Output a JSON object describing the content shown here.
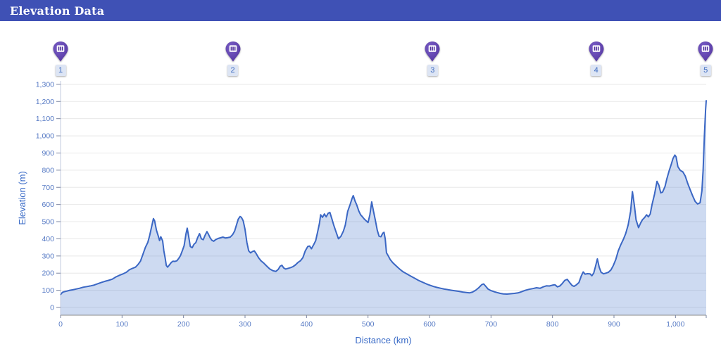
{
  "header": {
    "title": "Elevation Data",
    "bg_color": "#3f51b5"
  },
  "markers": {
    "pin_color_dark": "#53349f",
    "pin_color_light": "#7a5fc7",
    "icon": "mountain-columns-icon",
    "items": [
      {
        "label": "1",
        "km": 0
      },
      {
        "label": "2",
        "km": 280
      },
      {
        "label": "3",
        "km": 605
      },
      {
        "label": "4",
        "km": 871
      },
      {
        "label": "5",
        "km": 1049
      }
    ]
  },
  "chart_data": {
    "type": "area",
    "title": "",
    "xlabel": "Distance (km)",
    "ylabel": "Elevation (m)",
    "xlim": [
      0,
      1050
    ],
    "ylim": [
      -45,
      1320
    ],
    "x_ticks": [
      0,
      100,
      200,
      300,
      400,
      500,
      600,
      700,
      800,
      900,
      1000
    ],
    "y_ticks": [
      0,
      100,
      200,
      300,
      400,
      500,
      600,
      700,
      800,
      900,
      1000,
      1100,
      1200,
      1300
    ],
    "grid": "horizontal",
    "legend": "none",
    "line_color": "#3b67c4",
    "fill_color": "rgba(98,141,212,0.32)",
    "grid_color": "#e8e8e8",
    "tick_label_color": "#5579c4",
    "axis_title_color": "#3a6bc7",
    "points": [
      [
        0,
        75
      ],
      [
        3,
        88
      ],
      [
        6,
        92
      ],
      [
        10,
        95
      ],
      [
        15,
        100
      ],
      [
        20,
        103
      ],
      [
        26,
        108
      ],
      [
        31,
        112
      ],
      [
        37,
        118
      ],
      [
        43,
        122
      ],
      [
        49,
        126
      ],
      [
        54,
        130
      ],
      [
        60,
        138
      ],
      [
        66,
        145
      ],
      [
        72,
        152
      ],
      [
        78,
        158
      ],
      [
        84,
        165
      ],
      [
        90,
        178
      ],
      [
        96,
        188
      ],
      [
        101,
        195
      ],
      [
        107,
        205
      ],
      [
        112,
        220
      ],
      [
        117,
        228
      ],
      [
        122,
        235
      ],
      [
        126,
        250
      ],
      [
        130,
        270
      ],
      [
        134,
        310
      ],
      [
        138,
        350
      ],
      [
        142,
        380
      ],
      [
        145,
        420
      ],
      [
        148,
        470
      ],
      [
        151,
        518
      ],
      [
        153,
        505
      ],
      [
        156,
        450
      ],
      [
        159,
        415
      ],
      [
        161,
        390
      ],
      [
        163,
        412
      ],
      [
        166,
        388
      ],
      [
        168,
        330
      ],
      [
        170,
        290
      ],
      [
        172,
        245
      ],
      [
        174,
        235
      ],
      [
        177,
        248
      ],
      [
        180,
        262
      ],
      [
        183,
        270
      ],
      [
        186,
        268
      ],
      [
        189,
        272
      ],
      [
        192,
        285
      ],
      [
        195,
        302
      ],
      [
        198,
        330
      ],
      [
        201,
        360
      ],
      [
        204,
        430
      ],
      [
        206,
        462
      ],
      [
        208,
        420
      ],
      [
        211,
        355
      ],
      [
        214,
        348
      ],
      [
        217,
        368
      ],
      [
        220,
        378
      ],
      [
        223,
        408
      ],
      [
        226,
        430
      ],
      [
        229,
        400
      ],
      [
        232,
        395
      ],
      [
        235,
        420
      ],
      [
        238,
        442
      ],
      [
        240,
        430
      ],
      [
        243,
        408
      ],
      [
        246,
        392
      ],
      [
        249,
        386
      ],
      [
        252,
        395
      ],
      [
        256,
        402
      ],
      [
        260,
        406
      ],
      [
        264,
        410
      ],
      [
        268,
        405
      ],
      [
        272,
        407
      ],
      [
        276,
        410
      ],
      [
        280,
        425
      ],
      [
        283,
        445
      ],
      [
        286,
        480
      ],
      [
        289,
        515
      ],
      [
        292,
        530
      ],
      [
        294,
        525
      ],
      [
        297,
        505
      ],
      [
        300,
        455
      ],
      [
        303,
        380
      ],
      [
        306,
        330
      ],
      [
        309,
        318
      ],
      [
        312,
        326
      ],
      [
        315,
        330
      ],
      [
        318,
        315
      ],
      [
        322,
        290
      ],
      [
        326,
        272
      ],
      [
        330,
        260
      ],
      [
        335,
        242
      ],
      [
        340,
        225
      ],
      [
        345,
        215
      ],
      [
        350,
        210
      ],
      [
        354,
        222
      ],
      [
        357,
        240
      ],
      [
        360,
        246
      ],
      [
        363,
        230
      ],
      [
        366,
        224
      ],
      [
        370,
        228
      ],
      [
        374,
        232
      ],
      [
        378,
        238
      ],
      [
        382,
        248
      ],
      [
        386,
        262
      ],
      [
        390,
        272
      ],
      [
        394,
        290
      ],
      [
        398,
        330
      ],
      [
        402,
        355
      ],
      [
        405,
        358
      ],
      [
        408,
        342
      ],
      [
        412,
        368
      ],
      [
        415,
        390
      ],
      [
        418,
        440
      ],
      [
        421,
        490
      ],
      [
        423,
        540
      ],
      [
        426,
        525
      ],
      [
        429,
        545
      ],
      [
        432,
        528
      ],
      [
        435,
        548
      ],
      [
        438,
        554
      ],
      [
        441,
        520
      ],
      [
        444,
        482
      ],
      [
        448,
        440
      ],
      [
        452,
        400
      ],
      [
        456,
        415
      ],
      [
        460,
        445
      ],
      [
        463,
        480
      ],
      [
        467,
        560
      ],
      [
        471,
        600
      ],
      [
        474,
        635
      ],
      [
        476,
        652
      ],
      [
        479,
        620
      ],
      [
        482,
        595
      ],
      [
        485,
        562
      ],
      [
        488,
        540
      ],
      [
        491,
        528
      ],
      [
        494,
        515
      ],
      [
        497,
        505
      ],
      [
        500,
        495
      ],
      [
        503,
        540
      ],
      [
        506,
        615
      ],
      [
        509,
        560
      ],
      [
        512,
        508
      ],
      [
        515,
        450
      ],
      [
        518,
        415
      ],
      [
        521,
        412
      ],
      [
        524,
        432
      ],
      [
        526,
        438
      ],
      [
        528,
        400
      ],
      [
        530,
        318
      ],
      [
        533,
        300
      ],
      [
        536,
        280
      ],
      [
        540,
        262
      ],
      [
        544,
        248
      ],
      [
        548,
        235
      ],
      [
        552,
        222
      ],
      [
        557,
        208
      ],
      [
        562,
        198
      ],
      [
        567,
        188
      ],
      [
        572,
        178
      ],
      [
        577,
        168
      ],
      [
        582,
        158
      ],
      [
        587,
        150
      ],
      [
        592,
        142
      ],
      [
        597,
        134
      ],
      [
        602,
        128
      ],
      [
        607,
        122
      ],
      [
        612,
        117
      ],
      [
        618,
        112
      ],
      [
        624,
        107
      ],
      [
        630,
        104
      ],
      [
        636,
        100
      ],
      [
        642,
        97
      ],
      [
        648,
        94
      ],
      [
        654,
        90
      ],
      [
        660,
        87
      ],
      [
        665,
        85
      ],
      [
        670,
        90
      ],
      [
        675,
        100
      ],
      [
        680,
        115
      ],
      [
        685,
        133
      ],
      [
        688,
        137
      ],
      [
        691,
        125
      ],
      [
        695,
        108
      ],
      [
        700,
        98
      ],
      [
        705,
        92
      ],
      [
        710,
        87
      ],
      [
        715,
        82
      ],
      [
        720,
        79
      ],
      [
        726,
        78
      ],
      [
        732,
        80
      ],
      [
        738,
        82
      ],
      [
        744,
        85
      ],
      [
        750,
        92
      ],
      [
        756,
        100
      ],
      [
        762,
        106
      ],
      [
        768,
        110
      ],
      [
        774,
        115
      ],
      [
        780,
        112
      ],
      [
        785,
        120
      ],
      [
        790,
        126
      ],
      [
        795,
        125
      ],
      [
        800,
        130
      ],
      [
        804,
        132
      ],
      [
        808,
        120
      ],
      [
        812,
        125
      ],
      [
        816,
        140
      ],
      [
        820,
        158
      ],
      [
        824,
        164
      ],
      [
        828,
        145
      ],
      [
        832,
        128
      ],
      [
        835,
        123
      ],
      [
        839,
        132
      ],
      [
        843,
        145
      ],
      [
        847,
        185
      ],
      [
        850,
        207
      ],
      [
        853,
        194
      ],
      [
        857,
        197
      ],
      [
        861,
        196
      ],
      [
        864,
        185
      ],
      [
        867,
        200
      ],
      [
        870,
        240
      ],
      [
        873,
        283
      ],
      [
        876,
        235
      ],
      [
        879,
        205
      ],
      [
        883,
        196
      ],
      [
        887,
        200
      ],
      [
        891,
        205
      ],
      [
        895,
        218
      ],
      [
        899,
        245
      ],
      [
        903,
        280
      ],
      [
        907,
        330
      ],
      [
        911,
        365
      ],
      [
        915,
        395
      ],
      [
        919,
        430
      ],
      [
        923,
        480
      ],
      [
        927,
        560
      ],
      [
        930,
        675
      ],
      [
        933,
        600
      ],
      [
        936,
        510
      ],
      [
        940,
        465
      ],
      [
        943,
        490
      ],
      [
        946,
        510
      ],
      [
        950,
        525
      ],
      [
        953,
        540
      ],
      [
        956,
        528
      ],
      [
        959,
        545
      ],
      [
        962,
        600
      ],
      [
        966,
        660
      ],
      [
        970,
        735
      ],
      [
        973,
        712
      ],
      [
        976,
        668
      ],
      [
        979,
        672
      ],
      [
        983,
        705
      ],
      [
        986,
        750
      ],
      [
        990,
        800
      ],
      [
        993,
        832
      ],
      [
        996,
        868
      ],
      [
        999,
        888
      ],
      [
        1001,
        878
      ],
      [
        1004,
        820
      ],
      [
        1008,
        798
      ],
      [
        1012,
        790
      ],
      [
        1016,
        765
      ],
      [
        1020,
        722
      ],
      [
        1024,
        685
      ],
      [
        1028,
        650
      ],
      [
        1032,
        618
      ],
      [
        1036,
        603
      ],
      [
        1040,
        610
      ],
      [
        1043,
        680
      ],
      [
        1045,
        800
      ],
      [
        1047,
        1000
      ],
      [
        1049,
        1150
      ],
      [
        1050,
        1205
      ]
    ]
  }
}
